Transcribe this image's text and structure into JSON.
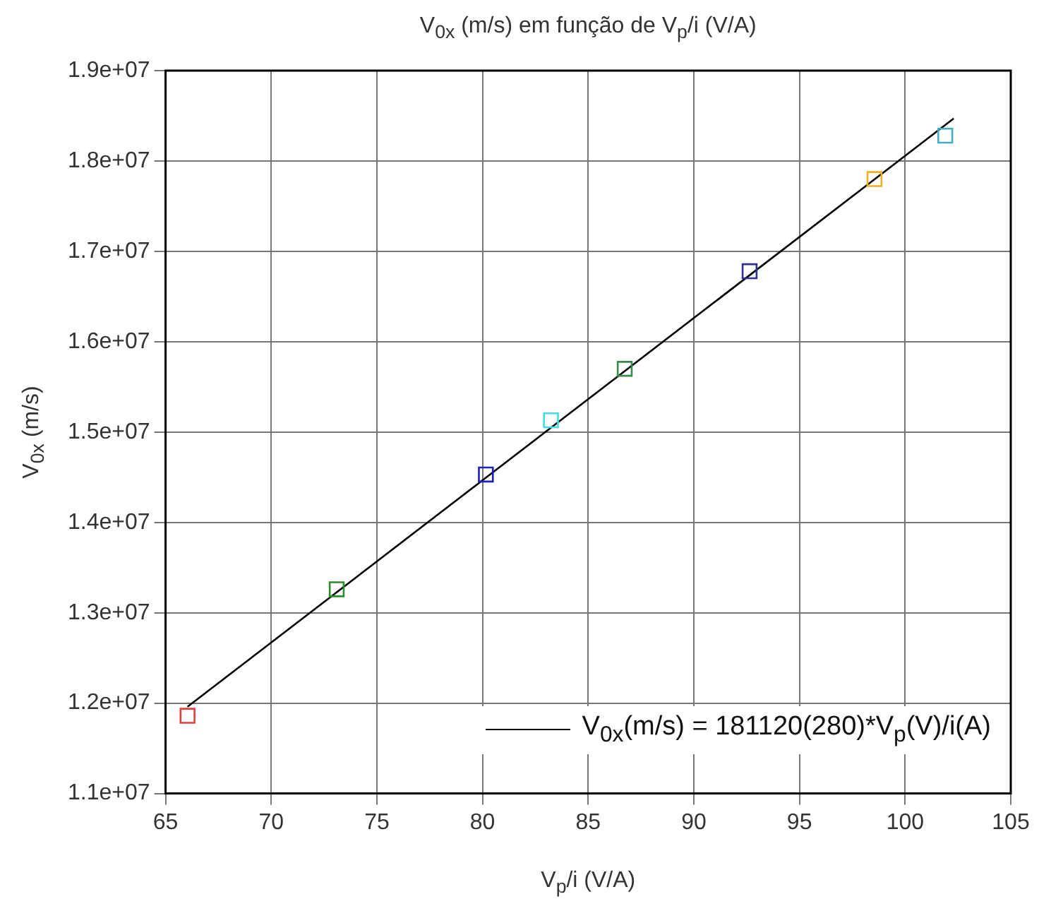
{
  "chart_data": {
    "type": "scatter",
    "title": "V$_{0x}$ (m/s) em função de V$_{p}$/i (V/A)",
    "xlabel": "V$_{p}$/i (V/A)",
    "ylabel": "V$_{0x}$ (m/s)",
    "xlim": [
      65,
      105
    ],
    "xticks": [
      65,
      70,
      75,
      80,
      85,
      90,
      95,
      100,
      105
    ],
    "ylim": [
      11000000,
      19000000
    ],
    "yticks": [
      {
        "value": 11000000,
        "label": "1.1e+07"
      },
      {
        "value": 12000000,
        "label": "1.2e+07"
      },
      {
        "value": 13000000,
        "label": "1.3e+07"
      },
      {
        "value": 14000000,
        "label": "1.4e+07"
      },
      {
        "value": 15000000,
        "label": "1.5e+07"
      },
      {
        "value": 16000000,
        "label": "1.6e+07"
      },
      {
        "value": 17000000,
        "label": "1.7e+07"
      },
      {
        "value": 18000000,
        "label": "1.8e+07"
      },
      {
        "value": 19000000,
        "label": "1.9e+07"
      }
    ],
    "grid": true,
    "legend": "bottom right",
    "series": [
      {
        "type": "scatter",
        "marker": "square",
        "x": [
          66.04,
          73.1,
          80.16,
          83.24,
          86.73,
          92.64,
          98.55,
          101.9
        ],
        "values": [
          11860000,
          13260000,
          14530000,
          15130000,
          15700000,
          16780000,
          17800000,
          18280000
        ],
        "colors": [
          "#e04040",
          "#2e8b2e",
          "#2020c0",
          "#40e0e0",
          "#3a8a50",
          "#303090",
          "#f0b020",
          "#40b0c0"
        ]
      },
      {
        "type": "line",
        "name": "V$_{0x}$(m/s) = 181120(280)*V$_{p}$(V)/i(A)",
        "color": "#000000",
        "x": [
          66.04,
          102.3
        ],
        "values": [
          11960000,
          18470000
        ]
      }
    ]
  }
}
